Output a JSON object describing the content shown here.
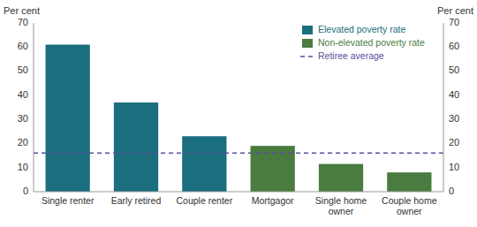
{
  "chart_data": {
    "type": "bar",
    "categories": [
      "Single renter",
      "Early retired",
      "Couple renter",
      "Mortgagor",
      "Single home\nowner",
      "Couple home\nowner"
    ],
    "series": [
      {
        "name": "Elevated poverty rate",
        "color": "#1a6e7e",
        "values": [
          61,
          37,
          23,
          null,
          null,
          null
        ]
      },
      {
        "name": "Non-elevated poverty rate",
        "color": "#4a7c3f",
        "values": [
          null,
          null,
          null,
          19,
          11.5,
          8
        ]
      }
    ],
    "reference_lines": [
      {
        "name": "Retiree average",
        "value": 16,
        "color": "#5b4f9e",
        "line_style": "dashed"
      }
    ],
    "ylabel": "Per cent",
    "y2label": "Per cent",
    "ylim": [
      0,
      70
    ],
    "yticks": [
      0,
      10,
      20,
      30,
      40,
      50,
      60,
      70
    ],
    "y2lim": [
      0,
      70
    ],
    "y2ticks": [
      0,
      10,
      20,
      30,
      40,
      50,
      60,
      70
    ],
    "grid": false,
    "legend": "upper right"
  }
}
